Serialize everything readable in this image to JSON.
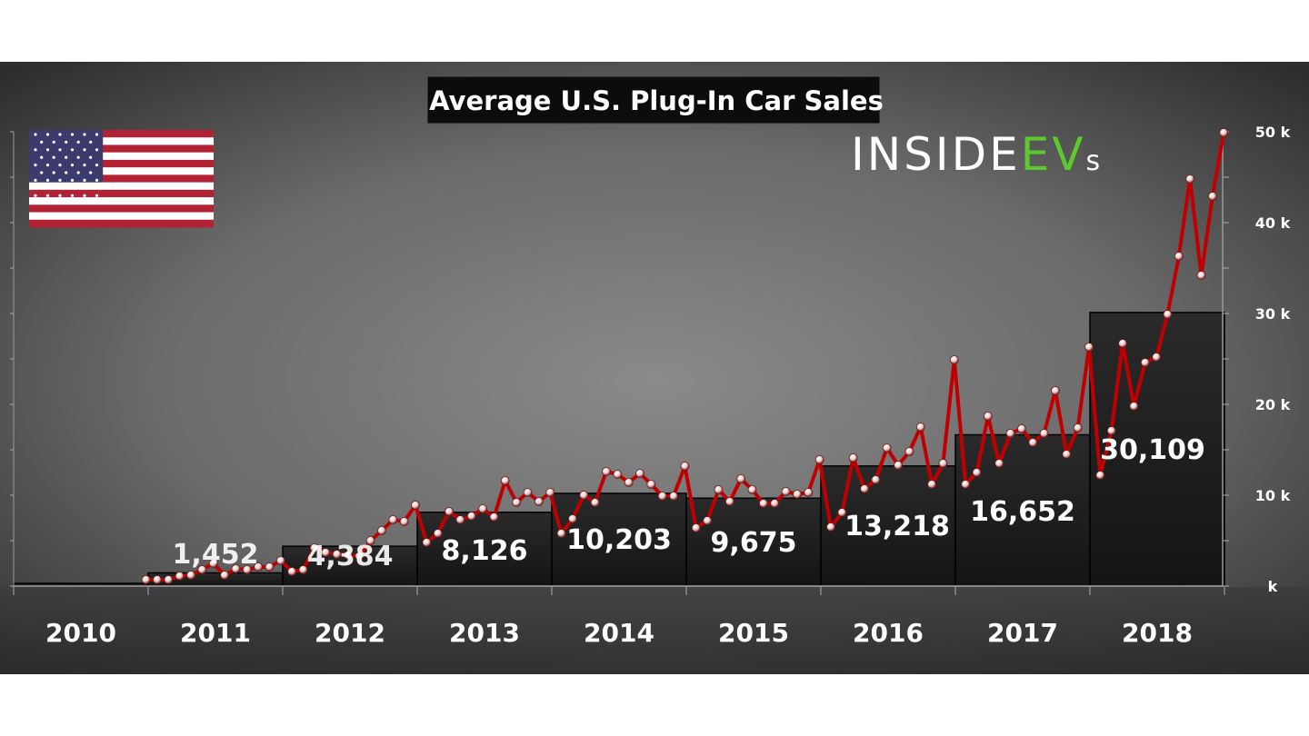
{
  "chart_data": {
    "type": "bar+line",
    "title": "Average U.S. Plug-In Car Sales",
    "logo": {
      "part1": "INSIDE",
      "part2": "EV",
      "part3": "s"
    },
    "flag": "us-flag",
    "y_unit": "k",
    "ylim": [
      0,
      50
    ],
    "y_ticks": [
      {
        "value": 0,
        "label": "k"
      },
      {
        "value": 10,
        "label": "10 k"
      },
      {
        "value": 20,
        "label": "20 k"
      },
      {
        "value": 30,
        "label": "30 k"
      },
      {
        "value": 40,
        "label": "40 k"
      },
      {
        "value": 50,
        "label": "50 k"
      }
    ],
    "categories": [
      "2010",
      "2011",
      "2012",
      "2013",
      "2014",
      "2015",
      "2016",
      "2017",
      "2018"
    ],
    "annual_average": {
      "values": [
        300,
        1452,
        4384,
        8126,
        10203,
        9675,
        13218,
        16652,
        30109
      ],
      "labels": [
        "",
        "1,452",
        "4,384",
        "8,126",
        "10,203",
        "9,675",
        "13,218",
        "16,652",
        "30,109"
      ]
    },
    "monthly_sales_k": {
      "2010": {
        "Dec": 0.7
      },
      "2011": [
        0.7,
        0.7,
        1.1,
        1.2,
        1.8,
        2.5,
        1.2,
        1.9,
        1.8,
        2.1,
        2.1,
        2.8
      ],
      "2012": [
        1.6,
        1.8,
        4.2,
        3.7,
        3.5,
        3.4,
        3.3,
        5.0,
        6.1,
        7.3,
        7.1,
        8.9
      ],
      "2013": [
        4.8,
        5.8,
        8.2,
        7.3,
        7.7,
        8.5,
        7.6,
        11.6,
        9.2,
        10.3,
        9.3,
        10.3
      ],
      "2014": [
        5.8,
        7.4,
        10.0,
        9.2,
        12.6,
        12.3,
        11.4,
        12.4,
        11.2,
        9.9,
        9.9,
        13.2
      ],
      "2015": [
        6.4,
        7.2,
        10.6,
        9.3,
        11.8,
        10.6,
        9.1,
        9.1,
        10.4,
        10.1,
        10.3,
        13.9
      ],
      "2016": [
        6.5,
        8.1,
        14.1,
        10.7,
        11.7,
        15.2,
        13.3,
        14.8,
        17.5,
        11.2,
        13.5,
        24.9
      ],
      "2017": [
        11.2,
        12.5,
        18.7,
        13.5,
        16.8,
        17.3,
        15.8,
        16.8,
        21.5,
        14.5,
        17.4,
        26.3
      ],
      "2018": [
        12.2,
        17.1,
        26.7,
        19.8,
        24.6,
        25.2,
        29.9,
        36.3,
        44.8,
        34.2,
        42.9,
        49.9
      ]
    },
    "colors": {
      "line": "#c00000",
      "bar": "#1c1c1c",
      "logo_green": "#5cc92e",
      "marker": "#f2dede"
    },
    "grid": false
  }
}
